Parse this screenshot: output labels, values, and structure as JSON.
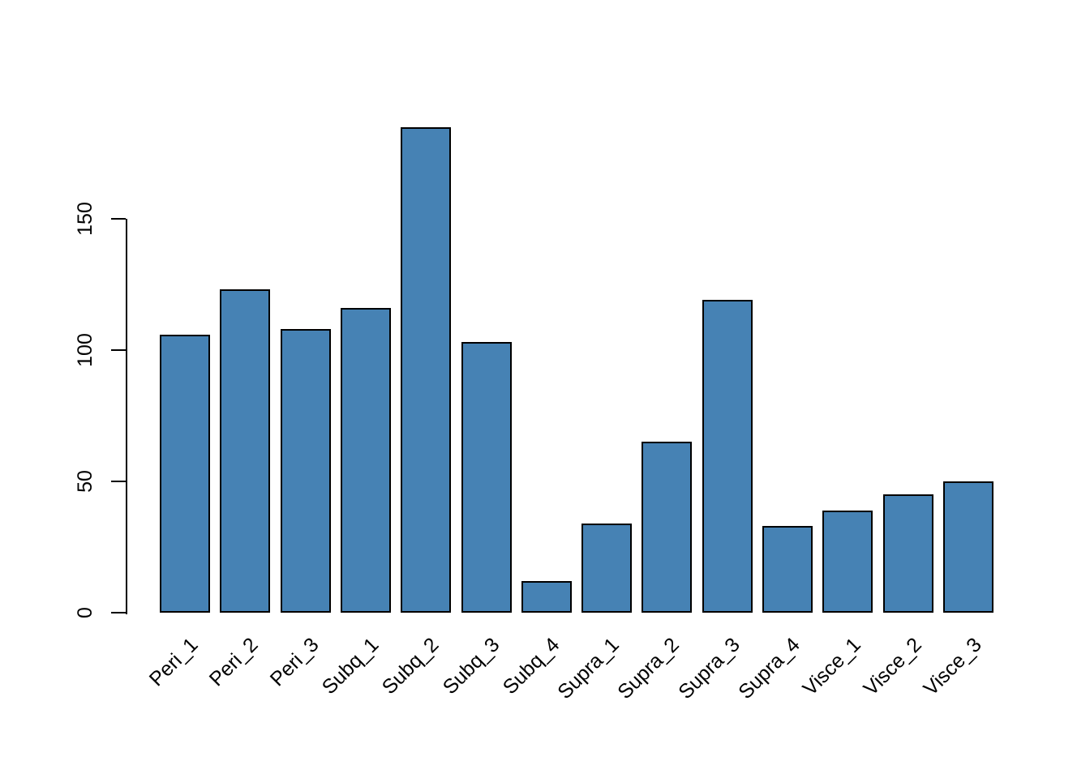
{
  "chart_data": {
    "type": "bar",
    "title": "",
    "xlabel": "",
    "ylabel": "",
    "categories": [
      "Peri_1",
      "Peri_2",
      "Peri_3",
      "Subq_1",
      "Subq_2",
      "Subq_3",
      "Subq_4",
      "Supra_1",
      "Supra_2",
      "Supra_3",
      "Supra_4",
      "Visce_1",
      "Visce_2",
      "Visce_3"
    ],
    "values": [
      106,
      123,
      108,
      116,
      185,
      103,
      12,
      34,
      65,
      119,
      33,
      39,
      45,
      50
    ],
    "y_ticks": [
      0,
      50,
      100,
      150
    ],
    "ylim": [
      0,
      190
    ],
    "grid": false,
    "legend_position": "none",
    "bar_color": "#4682B4",
    "bar_border_color": "#000000",
    "axis_color": "#000000",
    "background_color": "#FFFFFF"
  }
}
